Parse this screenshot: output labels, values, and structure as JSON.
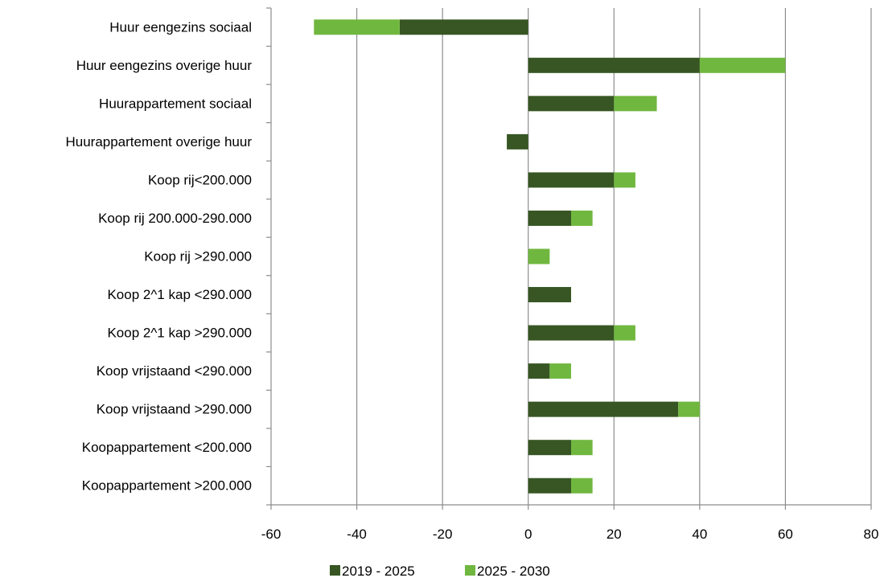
{
  "chart_data": {
    "type": "bar",
    "orientation": "horizontal",
    "stacked": true,
    "categories": [
      "Huur eengezins sociaal",
      "Huur eengezins overige huur",
      "Huurappartement sociaal",
      "Huurappartement overige huur",
      "Koop rij<200.000",
      "Koop rij 200.000-290.000",
      "Koop rij >290.000",
      "Koop 2^1 kap <290.000",
      "Koop 2^1 kap >290.000",
      "Koop vrijstaand <290.000",
      "Koop vrijstaand >290.000",
      "Koopappartement <200.000",
      "Koopappartement >200.000"
    ],
    "series": [
      {
        "name": "2019 - 2025",
        "color": "#375623",
        "values": [
          -30,
          40,
          20,
          -5,
          20,
          10,
          0,
          10,
          20,
          5,
          35,
          10,
          10
        ]
      },
      {
        "name": "2025 - 2030",
        "color": "#70B73F",
        "values": [
          -20,
          20,
          10,
          0,
          5,
          5,
          5,
          0,
          5,
          5,
          5,
          5,
          5
        ]
      }
    ],
    "xlim": [
      -60,
      80
    ],
    "xticks": [
      -60,
      -40,
      -20,
      0,
      20,
      40,
      60,
      80
    ],
    "xtick_labels": [
      "-60",
      "-40",
      "-20",
      "0",
      "20",
      "40",
      "60",
      "80"
    ],
    "title": "",
    "xlabel": "",
    "ylabel": "",
    "grid": "vertical",
    "gridline_color": "#8C8C8C",
    "legend_position": "bottom"
  }
}
